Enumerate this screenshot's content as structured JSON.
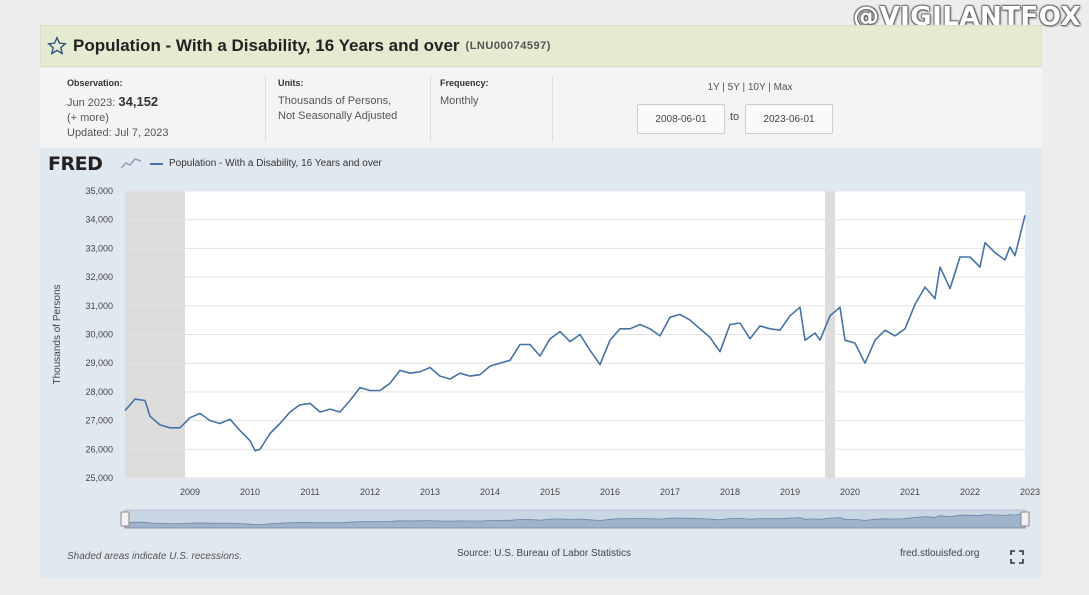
{
  "watermark": "@VIGILANTFOX",
  "header": {
    "title": "Population - With a Disability, 16 Years and over",
    "series_id": "(LNU00074597)"
  },
  "meta": {
    "observation_label": "Observation:",
    "observation_period": "Jun 2023:",
    "observation_value": "34,152",
    "more": "(+ more)",
    "updated": "Updated: Jul 7, 2023",
    "units_label": "Units:",
    "units_line1": "Thousands of Persons,",
    "units_line2": "Not Seasonally Adjusted",
    "frequency_label": "Frequency:",
    "frequency_value": "Monthly",
    "ranges": [
      "1Y",
      "5Y",
      "10Y",
      "Max"
    ],
    "date_from": "2008-06-01",
    "date_to_label": "to",
    "date_to": "2023-06-01"
  },
  "chart_data": {
    "type": "line",
    "brand": "FRED",
    "ylabel": "Thousands of Persons",
    "ylim": [
      25000,
      35000
    ],
    "yticks": [
      25000,
      26000,
      27000,
      28000,
      29000,
      30000,
      31000,
      32000,
      33000,
      34000,
      35000
    ],
    "ytick_labels": [
      "25,000",
      "26,000",
      "27,000",
      "28,000",
      "29,000",
      "30,000",
      "31,000",
      "32,000",
      "33,000",
      "34,000",
      "35,000"
    ],
    "xlim": [
      "2008-06",
      "2023-06"
    ],
    "xticks": [
      "2009",
      "2010",
      "2011",
      "2012",
      "2013",
      "2014",
      "2015",
      "2016",
      "2017",
      "2018",
      "2019",
      "2020",
      "2021",
      "2022",
      "2023"
    ],
    "grid": true,
    "recessions": [
      [
        "2008-06",
        "2009-06"
      ],
      [
        "2020-02",
        "2020-04"
      ]
    ],
    "series": [
      {
        "name": "Population - With a Disability, 16 Years and over",
        "color": "#4572a7",
        "points": [
          [
            "2008-06",
            27350
          ],
          [
            "2008-08",
            27750
          ],
          [
            "2008-10",
            27700
          ],
          [
            "2008-11",
            27150
          ],
          [
            "2009-01",
            26850
          ],
          [
            "2009-03",
            26750
          ],
          [
            "2009-05",
            26750
          ],
          [
            "2009-07",
            27100
          ],
          [
            "2009-09",
            27250
          ],
          [
            "2009-11",
            27000
          ],
          [
            "2010-01",
            26900
          ],
          [
            "2010-03",
            27050
          ],
          [
            "2010-05",
            26650
          ],
          [
            "2010-07",
            26300
          ],
          [
            "2010-08",
            25950
          ],
          [
            "2010-09",
            26000
          ],
          [
            "2010-11",
            26550
          ],
          [
            "2011-01",
            26900
          ],
          [
            "2011-03",
            27300
          ],
          [
            "2011-05",
            27550
          ],
          [
            "2011-07",
            27600
          ],
          [
            "2011-09",
            27300
          ],
          [
            "2011-11",
            27400
          ],
          [
            "2012-01",
            27300
          ],
          [
            "2012-03",
            27700
          ],
          [
            "2012-05",
            28150
          ],
          [
            "2012-07",
            28050
          ],
          [
            "2012-09",
            28050
          ],
          [
            "2012-11",
            28300
          ],
          [
            "2013-01",
            28750
          ],
          [
            "2013-03",
            28650
          ],
          [
            "2013-05",
            28700
          ],
          [
            "2013-07",
            28850
          ],
          [
            "2013-09",
            28550
          ],
          [
            "2013-11",
            28450
          ],
          [
            "2014-01",
            28650
          ],
          [
            "2014-03",
            28550
          ],
          [
            "2014-05",
            28600
          ],
          [
            "2014-07",
            28900
          ],
          [
            "2014-09",
            29000
          ],
          [
            "2014-11",
            29100
          ],
          [
            "2015-01",
            29650
          ],
          [
            "2015-03",
            29650
          ],
          [
            "2015-05",
            29250
          ],
          [
            "2015-07",
            29850
          ],
          [
            "2015-09",
            30100
          ],
          [
            "2015-11",
            29750
          ],
          [
            "2016-01",
            30000
          ],
          [
            "2016-03",
            29450
          ],
          [
            "2016-05",
            28950
          ],
          [
            "2016-07",
            29800
          ],
          [
            "2016-09",
            30200
          ],
          [
            "2016-11",
            30200
          ],
          [
            "2017-01",
            30350
          ],
          [
            "2017-03",
            30200
          ],
          [
            "2017-05",
            29950
          ],
          [
            "2017-07",
            30600
          ],
          [
            "2017-09",
            30700
          ],
          [
            "2017-11",
            30500
          ],
          [
            "2018-01",
            30200
          ],
          [
            "2018-03",
            29900
          ],
          [
            "2018-05",
            29400
          ],
          [
            "2018-07",
            30350
          ],
          [
            "2018-09",
            30400
          ],
          [
            "2018-11",
            29850
          ],
          [
            "2019-01",
            30300
          ],
          [
            "2019-03",
            30200
          ],
          [
            "2019-05",
            30150
          ],
          [
            "2019-07",
            30650
          ],
          [
            "2019-09",
            30950
          ],
          [
            "2019-10",
            29800
          ],
          [
            "2019-12",
            30050
          ],
          [
            "2020-01",
            29800
          ],
          [
            "2020-03",
            30650
          ],
          [
            "2020-05",
            30950
          ],
          [
            "2020-06",
            29800
          ],
          [
            "2020-08",
            29700
          ],
          [
            "2020-10",
            29000
          ],
          [
            "2020-12",
            29800
          ],
          [
            "2021-02",
            30150
          ],
          [
            "2021-04",
            29950
          ],
          [
            "2021-06",
            30200
          ],
          [
            "2021-08",
            31050
          ],
          [
            "2021-10",
            31650
          ],
          [
            "2021-12",
            31250
          ],
          [
            "2022-01",
            32350
          ],
          [
            "2022-03",
            31600
          ],
          [
            "2022-05",
            32700
          ],
          [
            "2022-07",
            32700
          ],
          [
            "2022-09",
            32350
          ],
          [
            "2022-10",
            33200
          ],
          [
            "2022-12",
            32850
          ],
          [
            "2023-02",
            32600
          ],
          [
            "2023-03",
            33050
          ],
          [
            "2023-04",
            32750
          ],
          [
            "2023-06",
            34152
          ]
        ]
      }
    ]
  },
  "footer": {
    "note": "Shaded areas indicate U.S. recessions.",
    "source": "Source: U.S. Bureau of Labor Statistics",
    "site": "fred.stlouisfed.org"
  }
}
